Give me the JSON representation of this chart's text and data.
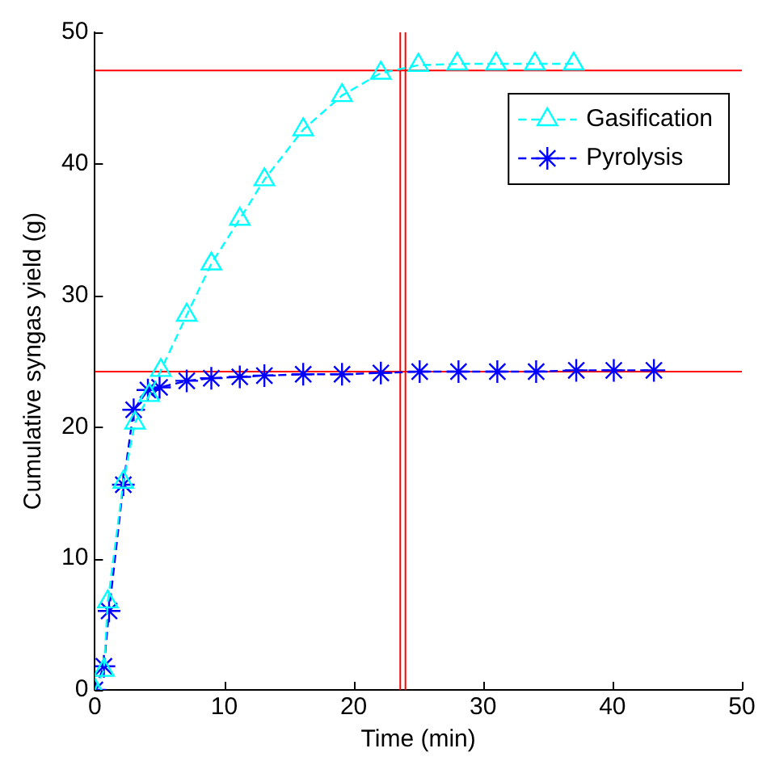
{
  "chart_data": {
    "type": "line",
    "xlabel": "Time (min)",
    "ylabel": "Cumulative syngas yield (g)",
    "xlim": [
      0,
      50
    ],
    "xticks": [
      0,
      10,
      20,
      30,
      40,
      50
    ],
    "ylim": [
      0,
      50
    ],
    "yticks": [
      0,
      10,
      20,
      30,
      40,
      50
    ],
    "grid": false,
    "legend": "top right",
    "line_style": "dashed",
    "series": [
      {
        "name": "Gasification",
        "color": "#00ffff",
        "marker": "triangle",
        "x": [
          0,
          0.7,
          1,
          2.2,
          3.1,
          4.2,
          5.1,
          7.1,
          9,
          11.2,
          13.1,
          16.1,
          19.1,
          22.1,
          25,
          28,
          31,
          34,
          37
        ],
        "values": [
          0,
          1.5,
          6.7,
          15.8,
          20.3,
          22.4,
          24.3,
          28.5,
          32.4,
          35.8,
          38.8,
          42.6,
          45.2,
          46.9,
          47.5,
          47.6,
          47.6,
          47.6,
          47.6
        ]
      },
      {
        "name": "Pyrolysis",
        "color": "#0000ff",
        "marker": "cross",
        "x": [
          0,
          0.7,
          1.1,
          2.2,
          3,
          4.1,
          5,
          7.1,
          9,
          11.2,
          13.1,
          16.1,
          19.1,
          22.1,
          25.1,
          28.1,
          31.1,
          34.1,
          37.2,
          40.1,
          43.2
        ],
        "values": [
          0,
          1.8,
          6,
          15.6,
          21.3,
          22.8,
          23,
          23.5,
          23.7,
          23.8,
          23.9,
          24,
          24,
          24.1,
          24.2,
          24.2,
          24.2,
          24.2,
          24.3,
          24.3,
          24.3
        ]
      }
    ],
    "ref_lines": [
      {
        "axis": "y",
        "value": 47.1,
        "color": "#ff0000"
      },
      {
        "axis": "y",
        "value": 24.2,
        "color": "#ff0000"
      },
      {
        "axis": "x",
        "value": 23.6,
        "color": "#ff0000"
      },
      {
        "axis": "x",
        "value": 24,
        "color": "#ff0000"
      }
    ]
  }
}
